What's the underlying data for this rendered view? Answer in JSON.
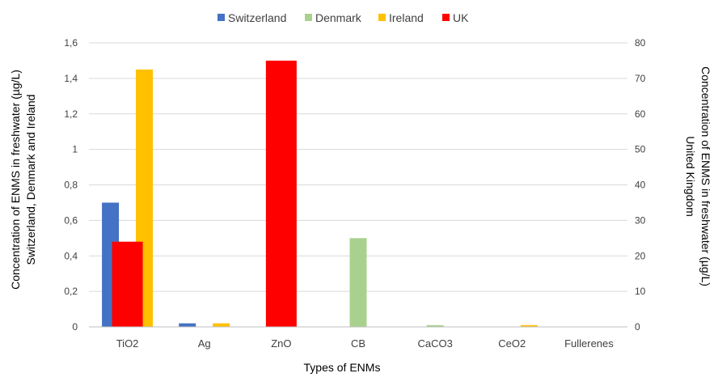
{
  "chart_data": {
    "type": "bar",
    "categories": [
      "TiO2",
      "Ag",
      "ZnO",
      "CB",
      "CaCO3",
      "CeO2",
      "Fullerenes"
    ],
    "series": [
      {
        "name": "Switzerland",
        "axis": "left",
        "color": "#4472c4",
        "values": [
          0.7,
          0.02,
          0,
          0,
          0,
          0,
          0
        ]
      },
      {
        "name": "Denmark",
        "axis": "left",
        "color": "#a9d18e",
        "values": [
          0,
          0,
          0,
          0.5,
          0.01,
          0,
          0
        ]
      },
      {
        "name": "Ireland",
        "axis": "left",
        "color": "#ffc000",
        "values": [
          1.45,
          0.02,
          0,
          0,
          0,
          0.01,
          0
        ]
      },
      {
        "name": "UK",
        "axis": "right",
        "color": "#ff0000",
        "values": [
          24,
          0,
          75,
          0,
          0,
          0,
          0
        ]
      }
    ],
    "xlabel": "Types of ENMs",
    "ylabel_left_line1": "Concentration  of ENMS in freshwater (µg/L)",
    "ylabel_left_line2": "Switzerland, Denmark and Ireland",
    "ylabel_right_line1": "Concentration  of ENMS in freshwater (µg/L)",
    "ylabel_right_line2": "United Kingdom",
    "ylim_left": [
      0,
      1.6
    ],
    "yticks_left": [
      "0",
      "0,2",
      "0,4",
      "0,6",
      "0,8",
      "1",
      "1,2",
      "1,4",
      "1,6"
    ],
    "ylim_right": [
      0,
      80
    ],
    "yticks_right": [
      "0",
      "10",
      "20",
      "30",
      "40",
      "50",
      "60",
      "70",
      "80"
    ],
    "grid": true,
    "legend_position": "top-center"
  }
}
